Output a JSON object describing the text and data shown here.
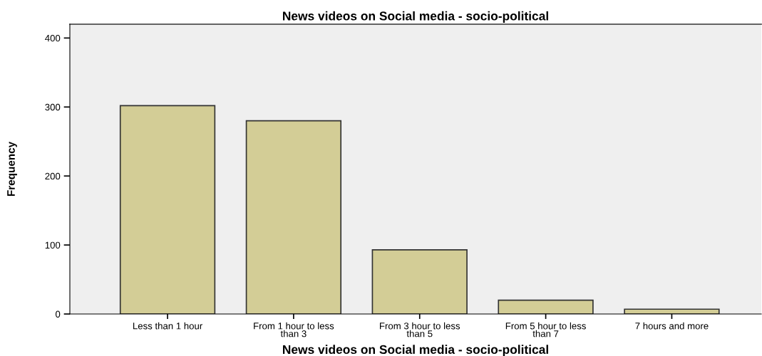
{
  "chart_data": {
    "type": "bar",
    "title": "News videos on Social media - socio-political",
    "xlabel": "News videos on Social media - socio-political",
    "ylabel": "Frequency",
    "categories": [
      "Less than 1 hour",
      "From 1 hour to less\nthan 3",
      "From 3 hour to less\nthan 5",
      "From 5 hour to less\nthan 7",
      "7 hours and more"
    ],
    "values": [
      302,
      280,
      93,
      20,
      7
    ],
    "color": "#d3cd96",
    "ylim": [
      0,
      420
    ],
    "yticks": [
      0,
      100,
      200,
      300,
      400
    ],
    "grid": false,
    "legend": false
  }
}
